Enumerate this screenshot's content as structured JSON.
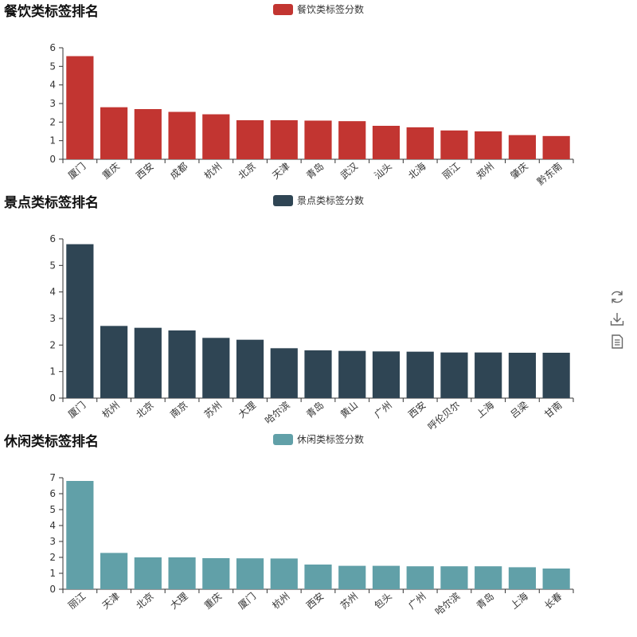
{
  "toolbox": {
    "restore_icon": "restore-icon",
    "save_icon": "download-icon",
    "dataview_icon": "document-icon"
  },
  "chart_data": [
    {
      "type": "bar",
      "title": "餐饮类标签排名",
      "legend": "餐饮类标签分数",
      "color": "#c23531",
      "ylim": [
        0,
        6
      ],
      "yticks": [
        0,
        1,
        2,
        3,
        4,
        5,
        6
      ],
      "categories": [
        "厦门",
        "重庆",
        "西安",
        "成都",
        "杭州",
        "北京",
        "天津",
        "青岛",
        "武汉",
        "汕头",
        "北海",
        "丽江",
        "郑州",
        "肇庆",
        "黔东南"
      ],
      "values": [
        5.55,
        2.8,
        2.7,
        2.55,
        2.42,
        2.1,
        2.1,
        2.08,
        2.05,
        1.8,
        1.72,
        1.55,
        1.5,
        1.3,
        1.25
      ]
    },
    {
      "type": "bar",
      "title": "景点类标签排名",
      "legend": "景点类标签分数",
      "color": "#2f4554",
      "ylim": [
        0,
        6
      ],
      "yticks": [
        0,
        1,
        2,
        3,
        4,
        5,
        6
      ],
      "categories": [
        "厦门",
        "杭州",
        "北京",
        "南京",
        "苏州",
        "大理",
        "哈尔滨",
        "青岛",
        "黄山",
        "广州",
        "西安",
        "呼伦贝尔",
        "上海",
        "吕梁",
        "甘南"
      ],
      "values": [
        5.8,
        2.72,
        2.65,
        2.55,
        2.27,
        2.2,
        1.88,
        1.8,
        1.78,
        1.76,
        1.75,
        1.72,
        1.72,
        1.71,
        1.71
      ]
    },
    {
      "type": "bar",
      "title": "休闲类标签排名",
      "legend": "休闲类标签分数",
      "color": "#61a0a8",
      "ylim": [
        0,
        7
      ],
      "yticks": [
        0,
        1,
        2,
        3,
        4,
        5,
        6,
        7
      ],
      "categories": [
        "丽江",
        "天津",
        "北京",
        "大理",
        "重庆",
        "厦门",
        "杭州",
        "西安",
        "苏州",
        "包头",
        "广州",
        "哈尔滨",
        "青岛",
        "上海",
        "长春"
      ],
      "values": [
        6.8,
        2.28,
        2.0,
        2.0,
        1.95,
        1.94,
        1.93,
        1.55,
        1.47,
        1.47,
        1.44,
        1.44,
        1.44,
        1.38,
        1.3
      ]
    }
  ]
}
